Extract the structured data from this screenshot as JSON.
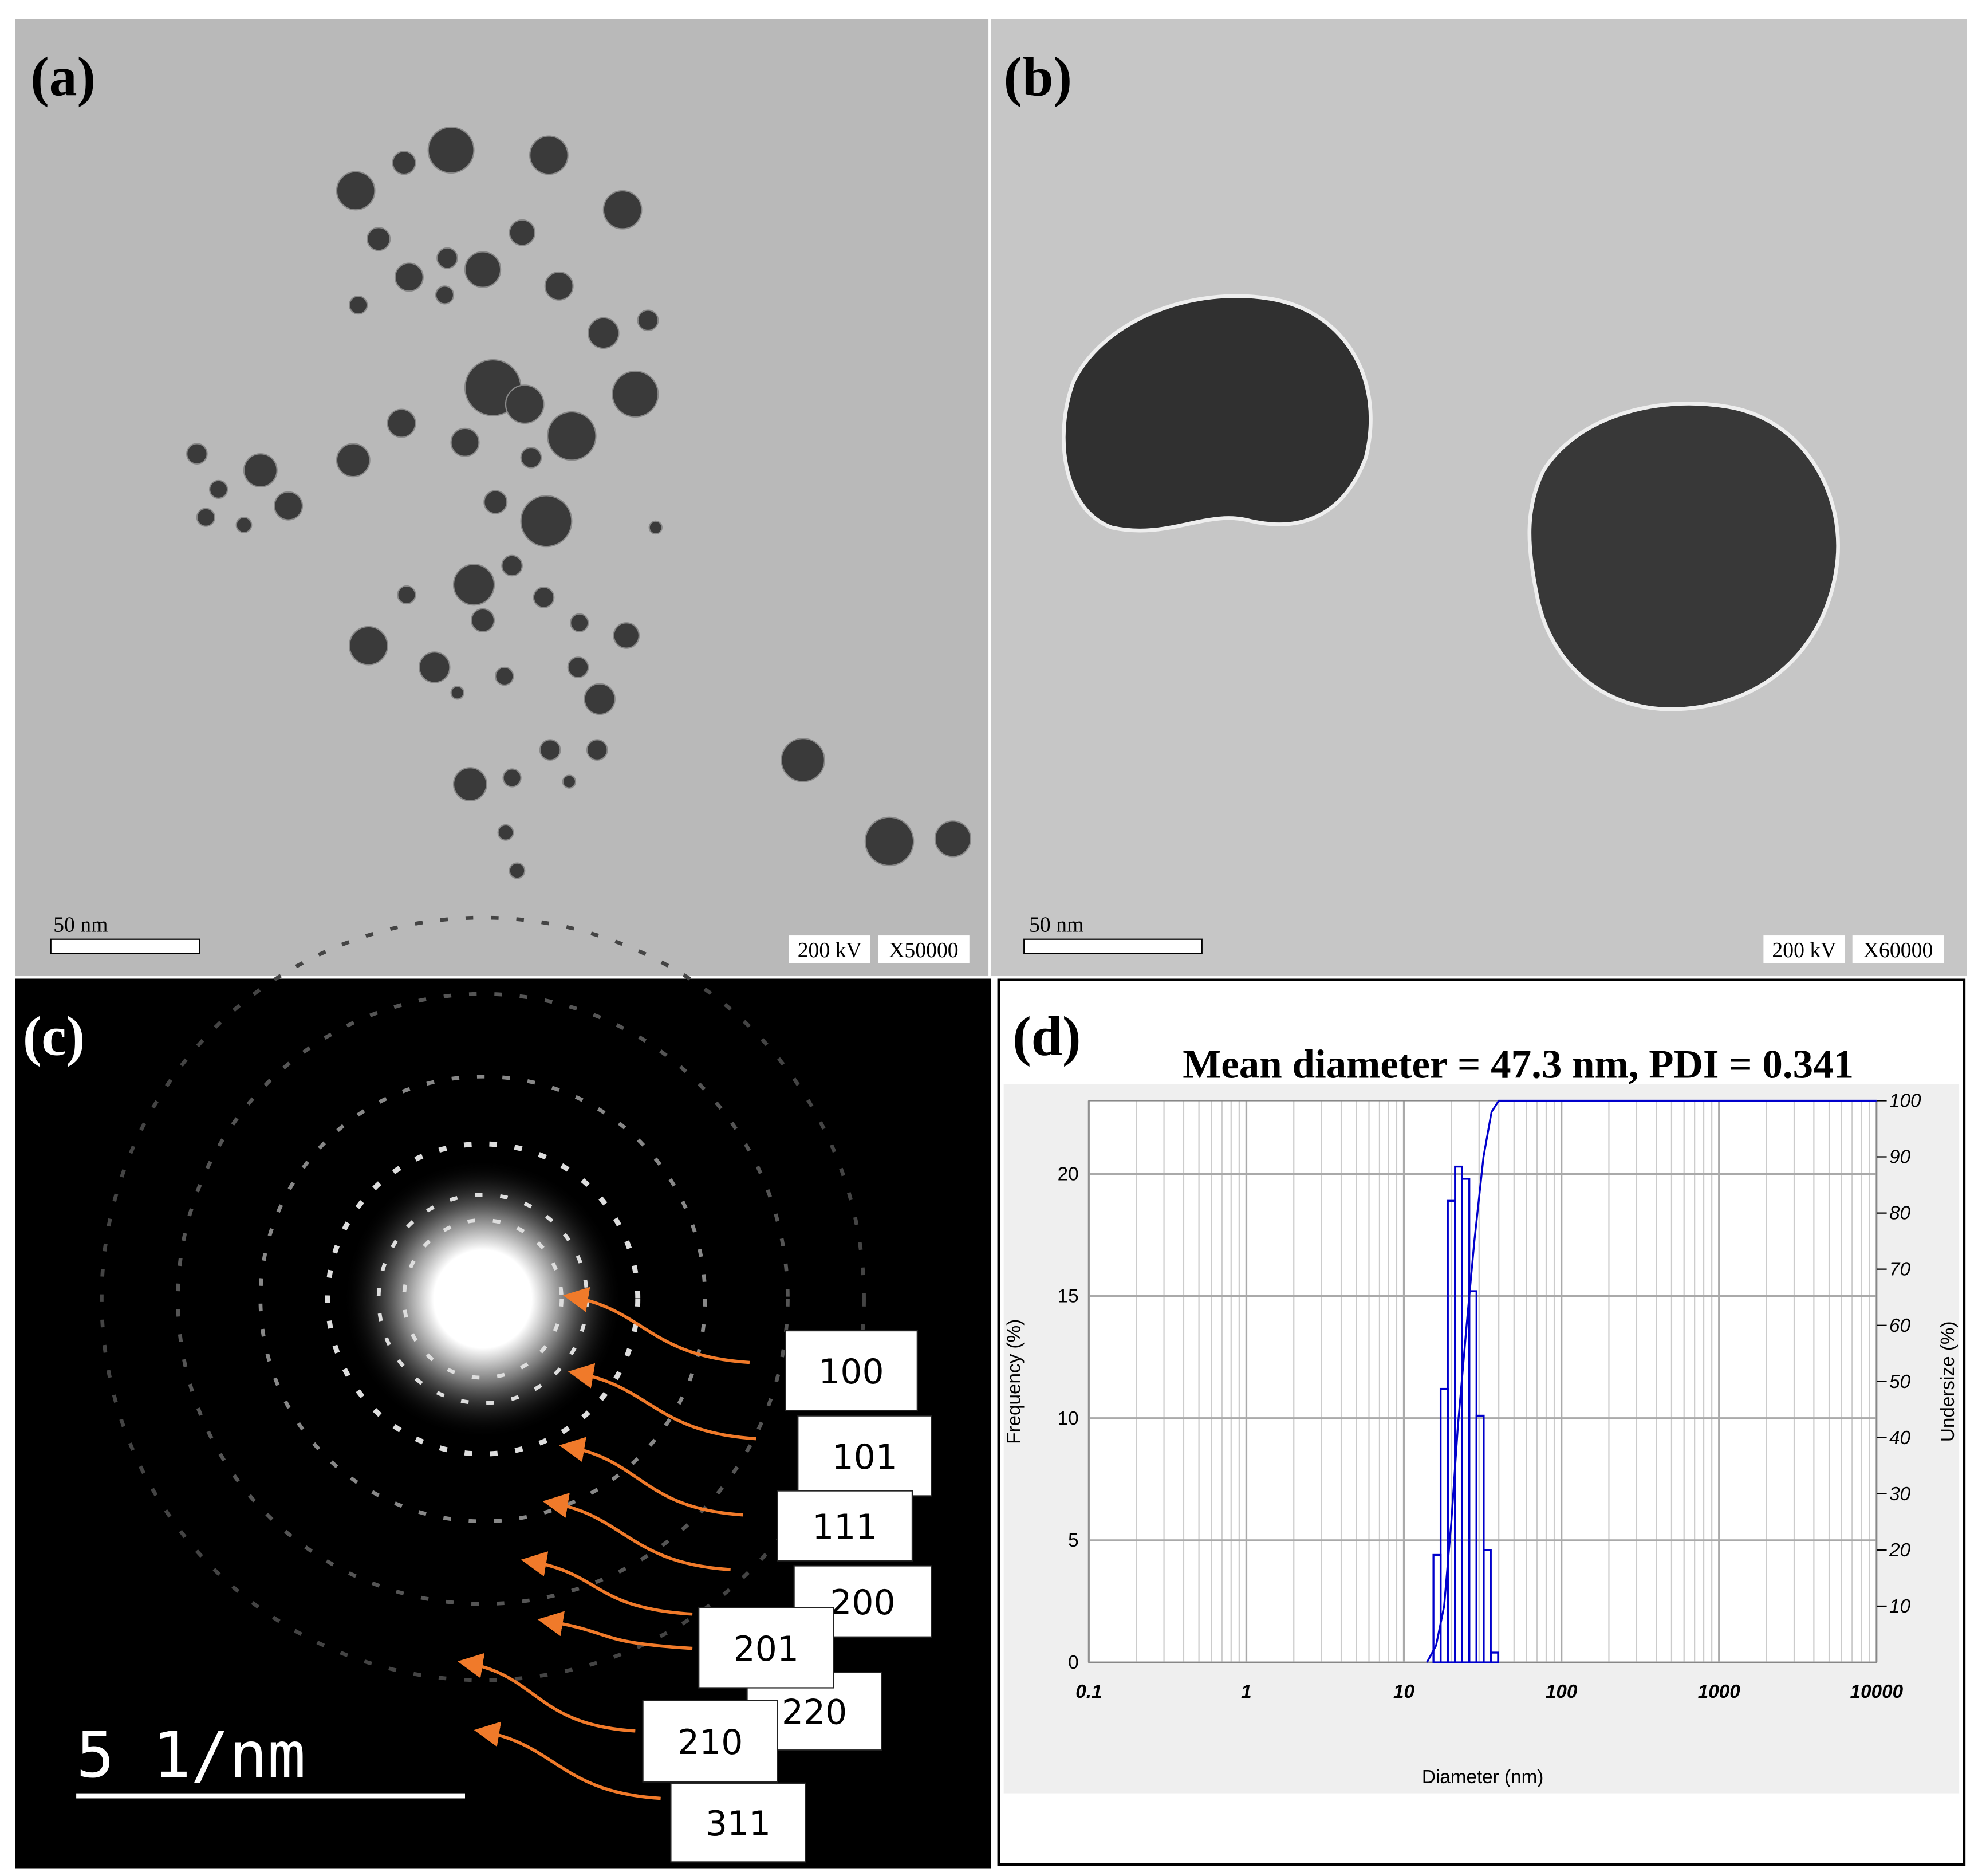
{
  "panels": {
    "a": {
      "label": "(a)",
      "scale_bar": "50 nm",
      "voltage": "200 kV",
      "magnification": "X50000"
    },
    "b": {
      "label": "(b)",
      "scale_bar": "50 nm",
      "voltage": "200 kV",
      "magnification": "X60000"
    },
    "c": {
      "label": "(c)",
      "scale_bar": "5 1/nm",
      "rings": [
        "100",
        "101",
        "111",
        "200",
        "201",
        "220",
        "210",
        "311"
      ]
    },
    "d": {
      "label": "(d)"
    }
  },
  "chart_data": {
    "type": "histogram",
    "title": "Mean diameter = 47.3 nm, PDI = 0.341",
    "x_label": "Diameter (nm)",
    "y_label": "Frequency (%)",
    "y2_label": "Undersize (%)",
    "log_x": true,
    "grid": true,
    "color": "#0000cc",
    "xlim": [
      0.1,
      10000
    ],
    "xticks": [
      0.1,
      1,
      10,
      100,
      1000,
      10000
    ],
    "ylim": [
      0,
      23
    ],
    "yticks": [
      0,
      5,
      10,
      15,
      20
    ],
    "y2lim": [
      0,
      100
    ],
    "y2ticks": [
      10,
      20,
      30,
      40,
      50,
      60,
      70,
      80,
      90,
      100
    ],
    "bins": [
      15.4,
      17.1,
      19.0,
      21.1,
      23.4,
      26.0,
      28.9,
      32.1,
      35.6,
      39.6
    ],
    "values": [
      4.4,
      11.2,
      18.9,
      20.3,
      19.8,
      15.2,
      10.1,
      4.6,
      0.4
    ],
    "cumulative": {
      "axis": "y2",
      "color": "#0000cc",
      "x": [
        14,
        16,
        18,
        20,
        22,
        25,
        28,
        32,
        36,
        40,
        10000
      ],
      "values": [
        0,
        3,
        10,
        25,
        42,
        60,
        75,
        90,
        98,
        100,
        100
      ]
    }
  }
}
